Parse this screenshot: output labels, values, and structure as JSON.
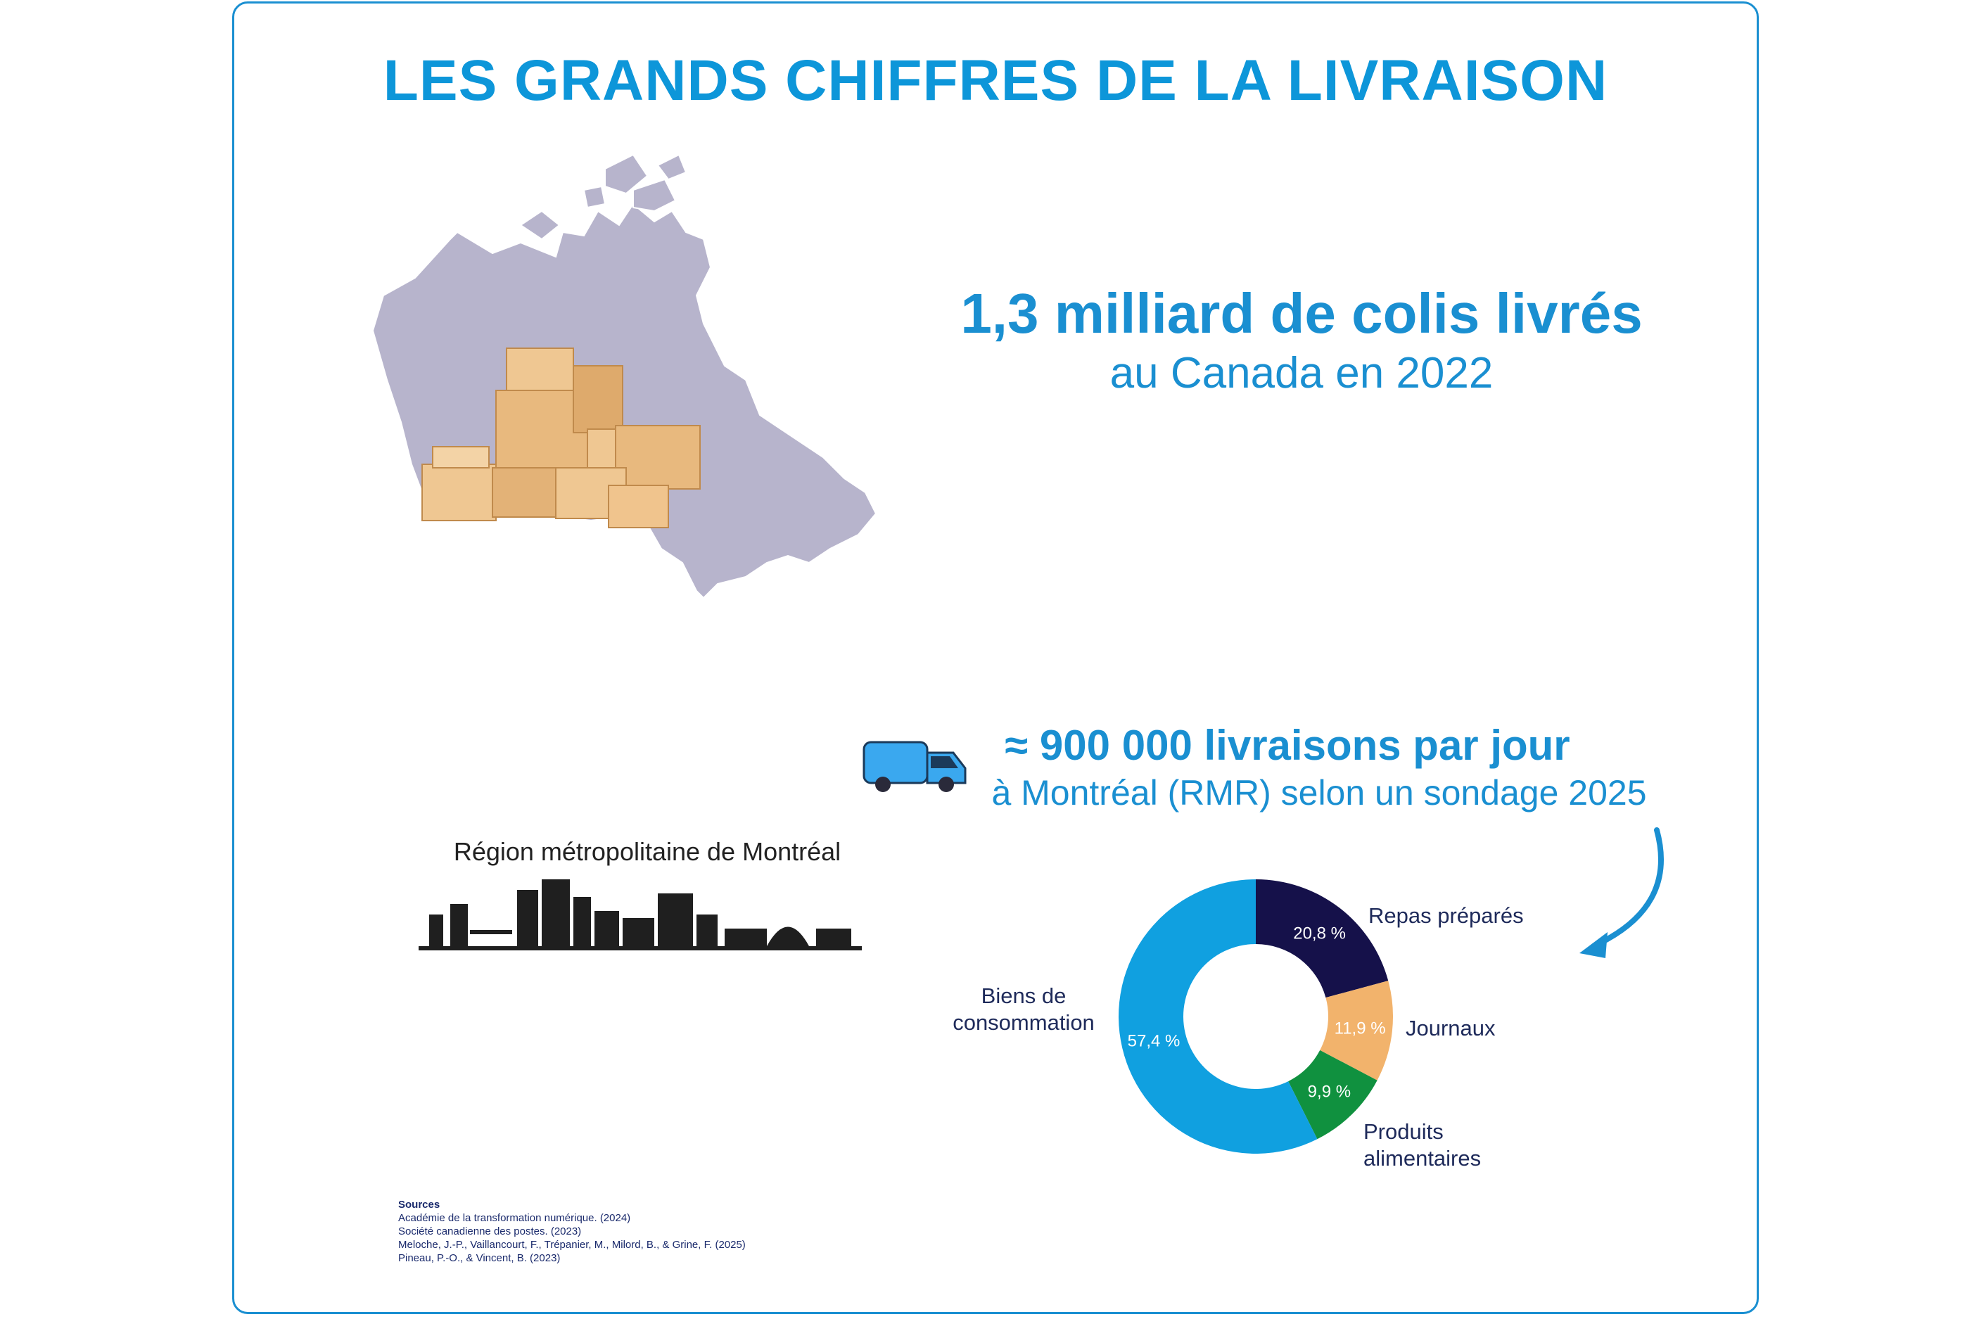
{
  "title": "LES GRANDS CHIFFRES DE LA LIVRAISON",
  "stat1": {
    "headline": "1,3 milliard de colis livrés",
    "sub": "au Canada en 2022"
  },
  "stat2": {
    "headline": "≈ 900 000 livraisons par jour",
    "sub": "à Montréal (RMR) selon un sondage 2025"
  },
  "montreal_label": "Région métropolitaine de Montréal",
  "sources": {
    "heading": "Sources",
    "items": [
      "Académie de la transformation numérique. (2024)",
      "Société canadienne des postes. (2023)",
      "Meloche, J.-P., Vaillancourt, F., Trépanier, M., Milord, B., & Grine, F. (2025)",
      "Pineau, P.-O., & Vincent, B. (2023)"
    ]
  },
  "colors": {
    "accent": "#1a8fd1",
    "map": "#b7b4cc",
    "box": "#e8b97e"
  },
  "chart_data": {
    "type": "pie",
    "categories": [
      "Repas préparés",
      "Journaux",
      "Produits alimentaires",
      "Biens de consommation"
    ],
    "values": [
      20.8,
      11.9,
      9.9,
      57.4
    ],
    "value_labels": [
      "20,8 %",
      "11,9 %",
      "9,9 %",
      "57,4 %"
    ],
    "colors": [
      "#15114a",
      "#f2b36c",
      "#10913f",
      "#10a0e0"
    ]
  }
}
